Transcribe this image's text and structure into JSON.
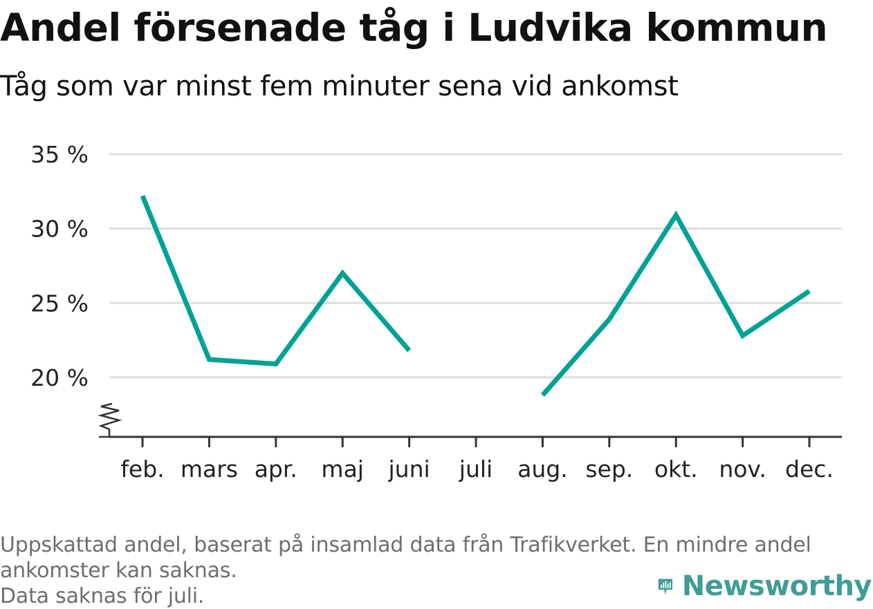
{
  "title": "Andel försenade tåg i Ludvika kommun",
  "subtitle": "Tåg som var minst fem minuter sena vid ankomst",
  "footnote": {
    "line1": "Uppskattad andel, baserat på insamlad data från Trafikverket. En mindre andel",
    "line2": "ankomster kan saknas.",
    "line3": "Data saknas för juli."
  },
  "brand": {
    "name": "Newsworthy",
    "icon": "newsworthy-logo-icon",
    "color": "#3f9c96"
  },
  "chart_data": {
    "type": "line",
    "categories": [
      "feb.",
      "mars",
      "apr.",
      "maj",
      "juni",
      "juli",
      "aug.",
      "sep.",
      "okt.",
      "nov.",
      "dec."
    ],
    "series": [
      {
        "values": [
          32.2,
          21.2,
          20.9,
          27.0,
          21.8,
          null,
          18.8,
          23.9,
          30.9,
          22.8,
          25.8
        ],
        "color": "#00a296"
      }
    ],
    "y_ticks": [
      20,
      25,
      30,
      35
    ],
    "y_tick_labels": [
      "20 %",
      "25 %",
      "30 %",
      "35 %"
    ],
    "ylim": [
      16,
      35
    ],
    "y_axis_break": true,
    "grid": true,
    "legend": "none"
  }
}
